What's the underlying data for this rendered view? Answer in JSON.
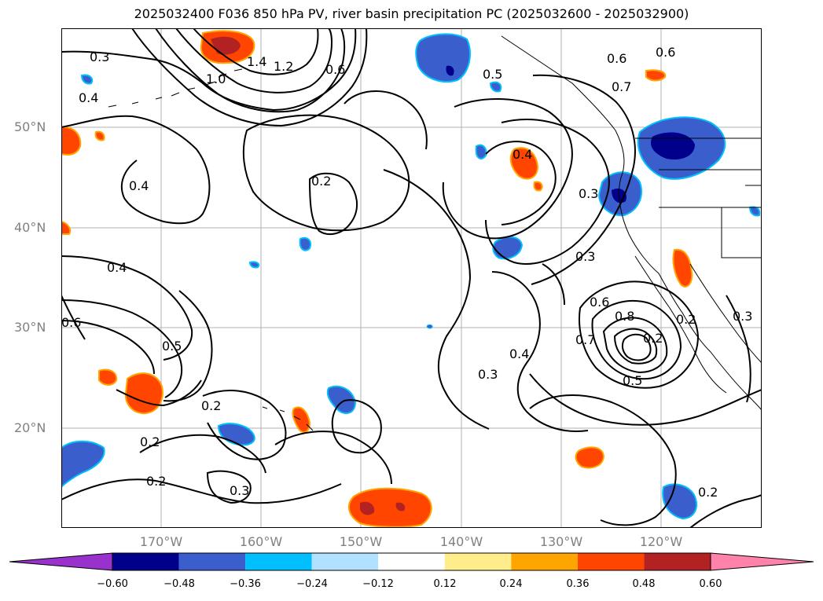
{
  "title": "2025032400 F036 850 hPa PV, river basin precipitation PC (2025032600 - 2025032900)",
  "lat_labels": [
    {
      "text": "50°N",
      "lat": 50
    },
    {
      "text": "40°N",
      "lat": 40
    },
    {
      "text": "30°N",
      "lat": 30
    },
    {
      "text": "20°N",
      "lat": 20
    }
  ],
  "lon_labels": [
    {
      "text": "170°W",
      "lon": -170
    },
    {
      "text": "160°W",
      "lon": -160
    },
    {
      "text": "150°W",
      "lon": -150
    },
    {
      "text": "140°W",
      "lon": -140
    },
    {
      "text": "130°W",
      "lon": -130
    },
    {
      "text": "120°W",
      "lon": -120
    }
  ],
  "contour_labels": [
    "0.3",
    "0.4",
    "1.0",
    "1.4",
    "1.2",
    "0.6",
    "0.5",
    "0.6",
    "0.7",
    "0.6",
    "0.4",
    "0.2",
    "0.4",
    "0.3",
    "0.3",
    "0.4",
    "0.5",
    "0.6",
    "0.2",
    "0.2",
    "0.2",
    "0.2",
    "0.3",
    "0.3",
    "0.4",
    "0.6",
    "0.8",
    "0.7",
    "0.5",
    "0.2",
    "0.3",
    "0.2"
  ],
  "colorbar": {
    "colors": [
      "#9932cc",
      "#00008b",
      "#3a5fcd",
      "#00bfff",
      "#b0e2ff",
      "#ffffff",
      "#ffec8b",
      "#ffa500",
      "#ff4500",
      "#b22222",
      "#ff82ab"
    ],
    "ticks": [
      "−0.60",
      "−0.48",
      "−0.36",
      "−0.24",
      "−0.12",
      "0.12",
      "0.24",
      "0.36",
      "0.48",
      "0.60"
    ]
  },
  "colors": {
    "contour": "#000000",
    "grid": "#b0b0b0",
    "coast": "#000000",
    "axis_label": "#808080"
  }
}
